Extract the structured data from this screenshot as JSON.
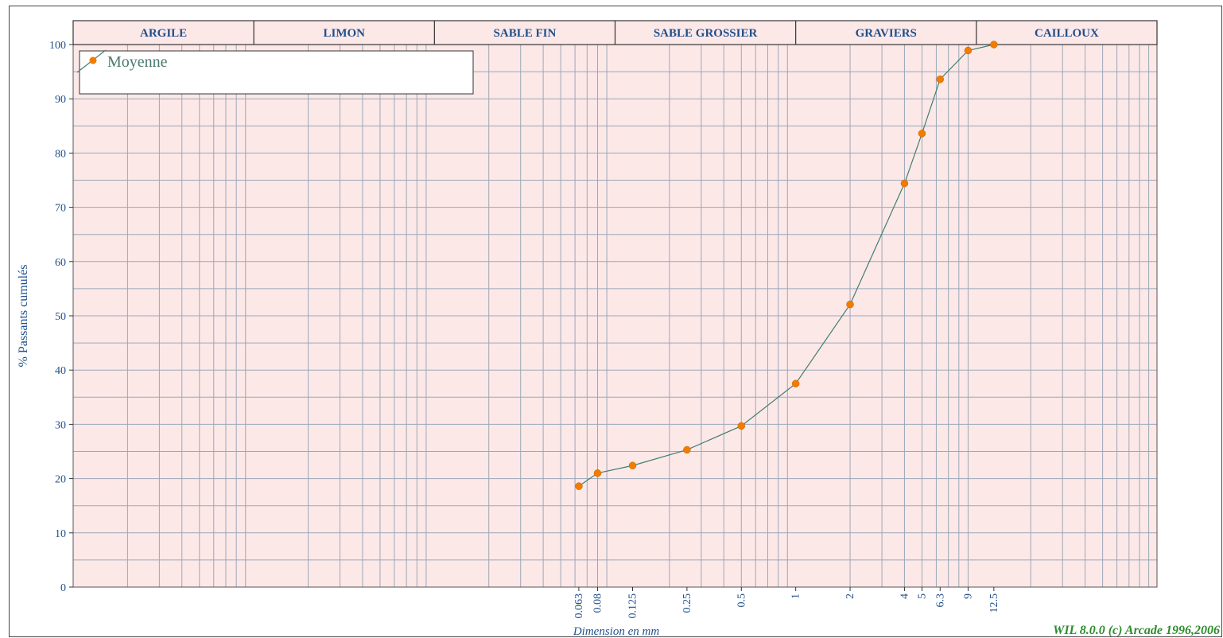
{
  "chart_data": {
    "type": "line",
    "title": "",
    "xlabel": "Dimension en mm",
    "ylabel": "% Passants cumulés",
    "xscale": "log",
    "ylim": [
      0,
      100
    ],
    "yticks": [
      "0",
      "10",
      "20",
      "30",
      "40",
      "50",
      "60",
      "70",
      "80",
      "90",
      "100"
    ],
    "xtick_labels": [
      "0.063",
      "0.08",
      "0.125",
      "0.25",
      "0.5",
      "1",
      "2",
      "4",
      "5",
      "6.3",
      "9",
      "12.5"
    ],
    "grid": true,
    "legend_position": "top-left",
    "bands": [
      "ARGILE",
      "LIMON",
      "SABLE FIN",
      "SABLE GROSSIER",
      "GRAVIERS",
      "CAILLOUX"
    ],
    "series": [
      {
        "name": "Moyenne",
        "x": [
          0.063,
          0.08,
          0.125,
          0.25,
          0.5,
          1,
          2,
          4,
          5,
          6.3,
          9,
          12.5
        ],
        "y": [
          18.6,
          21.0,
          22.4,
          25.3,
          29.7,
          37.5,
          52.1,
          74.4,
          83.6,
          93.6,
          98.9,
          100.0
        ]
      }
    ],
    "colors": {
      "plot_background": "#fde8e8",
      "header_background": "#fde8e8",
      "grid": "#9aa8b8",
      "line": "#3f7f72",
      "marker": "#f07c00",
      "text": "#1f4f8c",
      "credit": "#2e8b2e"
    }
  },
  "credit": "WIL 8.0.0 (c) Arcade 1996,2006"
}
